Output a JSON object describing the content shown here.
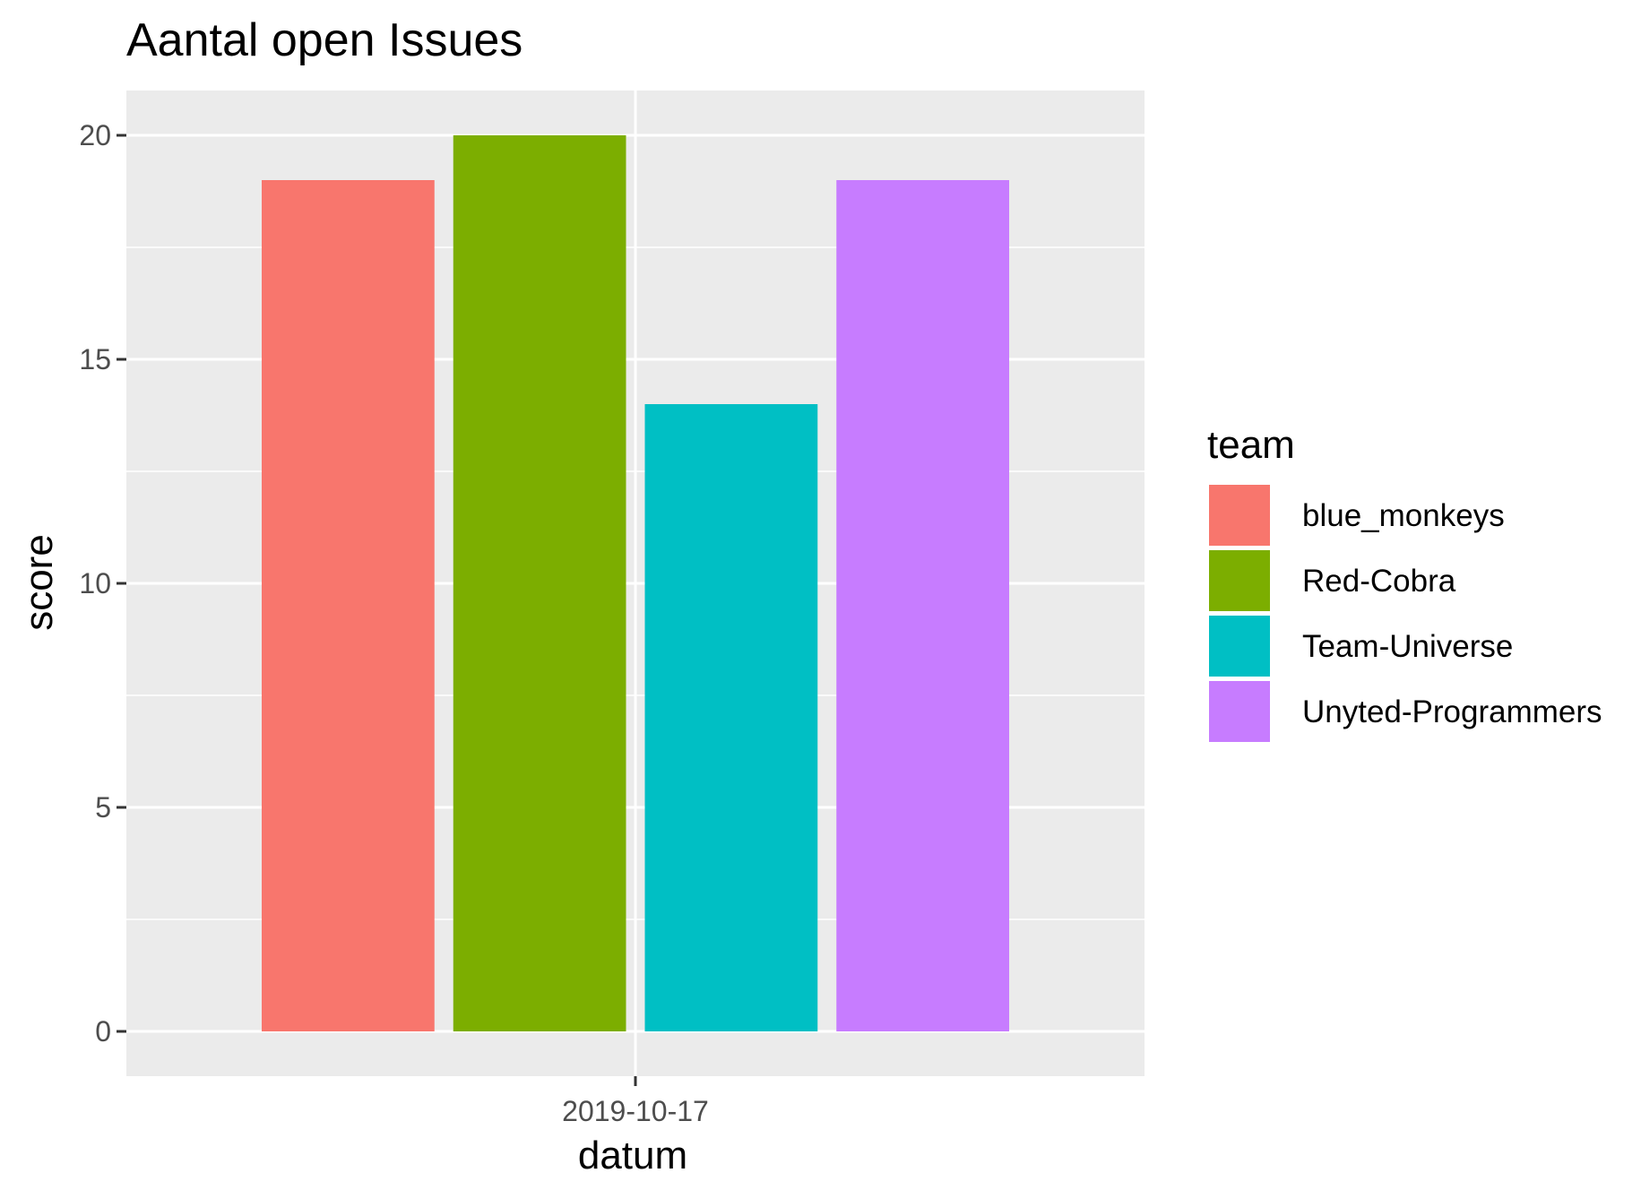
{
  "chart_data": {
    "type": "bar",
    "title": "Aantal open Issues",
    "xlabel": "datum",
    "ylabel": "score",
    "categories": [
      "2019-10-17"
    ],
    "ylim": [
      -1,
      21
    ],
    "yticks": [
      0,
      5,
      10,
      15,
      20
    ],
    "grid": true,
    "legend": {
      "title": "team",
      "placement": "right"
    },
    "series": [
      {
        "name": "blue_monkeys",
        "values": [
          19
        ],
        "color": "#F8766D"
      },
      {
        "name": "Red-Cobra",
        "values": [
          20
        ],
        "color": "#7CAE00"
      },
      {
        "name": "Team-Universe",
        "values": [
          14
        ],
        "color": "#00BFC4"
      },
      {
        "name": "Unyted-Programmers",
        "values": [
          19
        ],
        "color": "#C77CFF"
      }
    ],
    "colors": {
      "panel_background": "#EBEBEB",
      "grid": "#FFFFFF"
    }
  }
}
